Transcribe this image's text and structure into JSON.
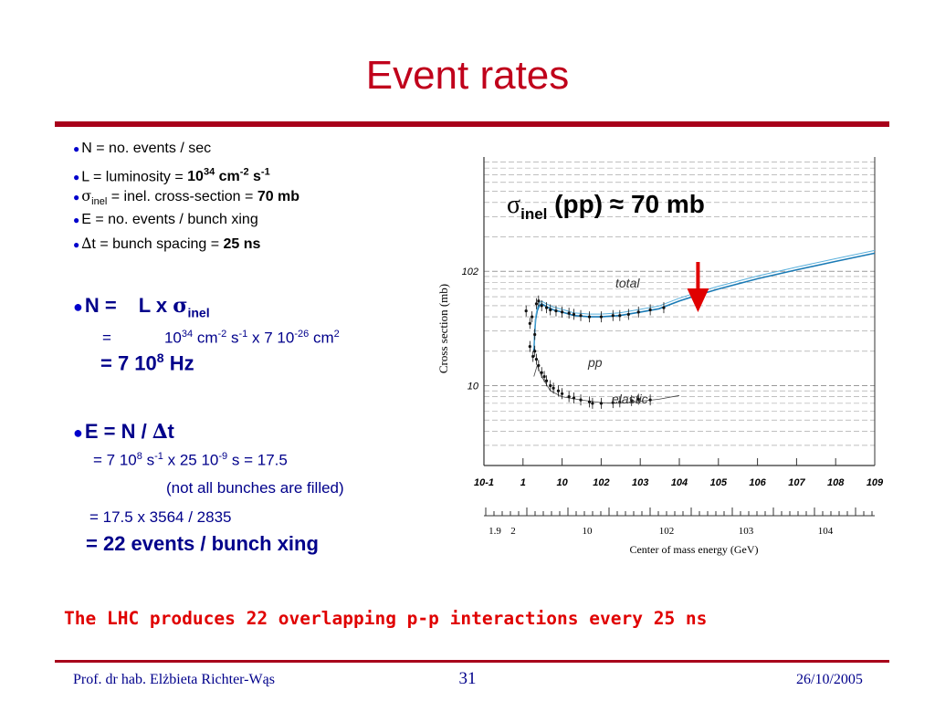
{
  "slide": {
    "title": "Event rates",
    "bullets": [
      {
        "text": "N = no. events / sec"
      },
      {
        "pre": "L = luminosity = ",
        "bold_base": "10",
        "bold_exp": "34",
        "bold_mid": " cm",
        "bold_exp2": "-2",
        "bold_mid2": " s",
        "bold_exp3": "-1"
      },
      {
        "sym": "σ",
        "sub": "inel",
        "text": " = inel. cross-section = ",
        "bold": "70 mb"
      },
      {
        "text": "E = no. events / bunch xing"
      },
      {
        "sym": "∆",
        "text": "t = bunch spacing = ",
        "bold": "25 ns"
      }
    ],
    "eq_n": {
      "lhs": "N =",
      "rhs": "L x ",
      "sym": "σ",
      "sub": "inel"
    },
    "eq_n2": {
      "eq": "=",
      "base": "10",
      "exp1": "34",
      "cm": " cm",
      "exp2": "-2",
      "s": " s",
      "exp3": "-1",
      "x": " x 7 10",
      "exp4": "-26",
      "cm2": " cm",
      "exp5": "2"
    },
    "eq_n3": {
      "text": "= 7 10",
      "exp": "8",
      "hz": " Hz"
    },
    "eq_e": {
      "text": "E = N / ",
      "sym": "∆",
      "t": "t"
    },
    "eq_e2": {
      "text": "= 7 10",
      "exp1": "8",
      "s": " s",
      "exp2": "-1",
      "x": " x 25 10",
      "exp3": "-9",
      "end": " s = 17.5"
    },
    "eq_e3": {
      "text": "(not all bunches are filled)"
    },
    "eq_e4": {
      "text": "= 17.5 x 3564 / 2835"
    },
    "eq_e5": {
      "text": "= 22 events / bunch xing"
    },
    "note": "The LHC produces 22 overlapping p-p interactions every 25 ns",
    "footer": {
      "author": "Prof. dr hab. Elżbieta Richter-Wąs",
      "page": "31",
      "date": "26/10/2005"
    }
  },
  "chart_data": {
    "type": "scatter",
    "title": {
      "sigma": "σ",
      "sub": "inel",
      "rest": " (pp) ≈ 70 mb"
    },
    "xlabel": "Center of mass energy (GeV)",
    "ylabel": "Cross section (mb)",
    "xscale": "log",
    "yscale": "log",
    "xlim": [
      0.1,
      1000000000
    ],
    "ylim": [
      2,
      1000
    ],
    "x_tick_labels": [
      "10-1",
      "1",
      "10",
      "102",
      "103",
      "104",
      "105",
      "106",
      "107",
      "108",
      "109"
    ],
    "y_tick_labels": [
      "10",
      "102"
    ],
    "lower_axis_labels": [
      "1.9",
      "2",
      "10",
      "102",
      "103",
      "104"
    ],
    "annotations": [
      "total",
      "pp",
      "elastic"
    ],
    "arrow_at_x": 30000,
    "series": [
      {
        "points": [
          [
            1.9,
            20
          ],
          [
            2.0,
            30
          ],
          [
            2.1,
            38
          ],
          [
            2.3,
            45
          ],
          [
            2.6,
            50
          ],
          [
            3,
            52
          ],
          [
            4,
            49
          ],
          [
            6,
            46
          ],
          [
            10,
            44
          ],
          [
            20,
            41
          ],
          [
            50,
            40
          ],
          [
            100,
            40
          ],
          [
            300,
            41
          ],
          [
            1000,
            44
          ],
          [
            3000,
            47
          ],
          [
            10000,
            55
          ],
          [
            30000,
            62
          ],
          [
            100000,
            70
          ],
          [
            1000000,
            86
          ],
          [
            10000000,
            103
          ],
          [
            100000000,
            122
          ],
          [
            1000000000,
            144
          ]
        ]
      },
      {
        "points": [
          [
            1.9,
            12
          ],
          [
            2.3,
            15
          ],
          [
            3,
            12
          ],
          [
            5,
            9
          ],
          [
            10,
            8
          ],
          [
            30,
            7.5
          ],
          [
            100,
            7.1
          ],
          [
            300,
            7.0
          ],
          [
            1000,
            7.3
          ],
          [
            3000,
            7.6
          ],
          [
            10000,
            8.2
          ]
        ]
      }
    ],
    "total_points": [
      [
        1.2,
        45
      ],
      [
        1.5,
        35
      ],
      [
        1.7,
        40
      ],
      [
        2.0,
        28
      ],
      [
        2.2,
        52
      ],
      [
        2.5,
        55
      ],
      [
        3,
        50
      ],
      [
        4,
        48
      ],
      [
        5,
        46
      ],
      [
        7,
        45
      ],
      [
        10,
        44
      ],
      [
        15,
        43
      ],
      [
        20,
        42
      ],
      [
        30,
        41
      ],
      [
        50,
        40
      ],
      [
        100,
        40
      ],
      [
        200,
        41
      ],
      [
        300,
        41
      ],
      [
        500,
        42
      ],
      [
        900,
        44
      ],
      [
        1800,
        46
      ],
      [
        4000,
        48
      ]
    ],
    "elastic_points": [
      [
        1.5,
        22
      ],
      [
        1.8,
        18
      ],
      [
        2.0,
        20
      ],
      [
        2.2,
        17
      ],
      [
        2.5,
        15
      ],
      [
        3,
        13
      ],
      [
        3.5,
        12
      ],
      [
        4,
        11
      ],
      [
        5,
        10
      ],
      [
        6,
        9.5
      ],
      [
        8,
        9
      ],
      [
        10,
        8.5
      ],
      [
        15,
        8
      ],
      [
        20,
        7.8
      ],
      [
        30,
        7.5
      ],
      [
        50,
        7.2
      ],
      [
        60,
        7.0
      ],
      [
        100,
        7.0
      ],
      [
        200,
        7.1
      ],
      [
        300,
        7.2
      ],
      [
        600,
        7.4
      ],
      [
        900,
        7.6
      ],
      [
        1800,
        7.5
      ]
    ]
  }
}
